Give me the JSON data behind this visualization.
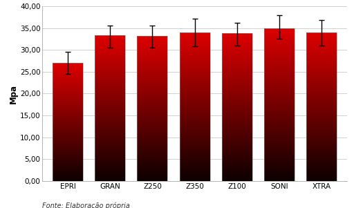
{
  "categories": [
    "EPRI",
    "GRAN",
    "Z250",
    "Z350",
    "Z100",
    "SONI",
    "XTRA"
  ],
  "means": [
    27.0,
    33.3,
    33.2,
    34.0,
    33.8,
    35.0,
    34.0
  ],
  "ci_lower": [
    24.5,
    30.5,
    30.5,
    30.8,
    31.0,
    32.5,
    31.0
  ],
  "ci_upper": [
    29.5,
    35.5,
    35.5,
    37.2,
    36.2,
    38.0,
    36.8
  ],
  "ylim": [
    0,
    40
  ],
  "yticks": [
    0.0,
    5.0,
    10.0,
    15.0,
    20.0,
    25.0,
    30.0,
    35.0,
    40.0
  ],
  "ylabel": "Mpa",
  "bar_color_top": "#dd0000",
  "bar_color_bottom": "#0d0000",
  "background_color": "#ffffff",
  "grid_color": "#d0d0d0",
  "error_bar_color": "#000000",
  "caption": "Fonte: Elaboração própria",
  "bar_width": 0.72,
  "bar_edge_color": "#888888"
}
